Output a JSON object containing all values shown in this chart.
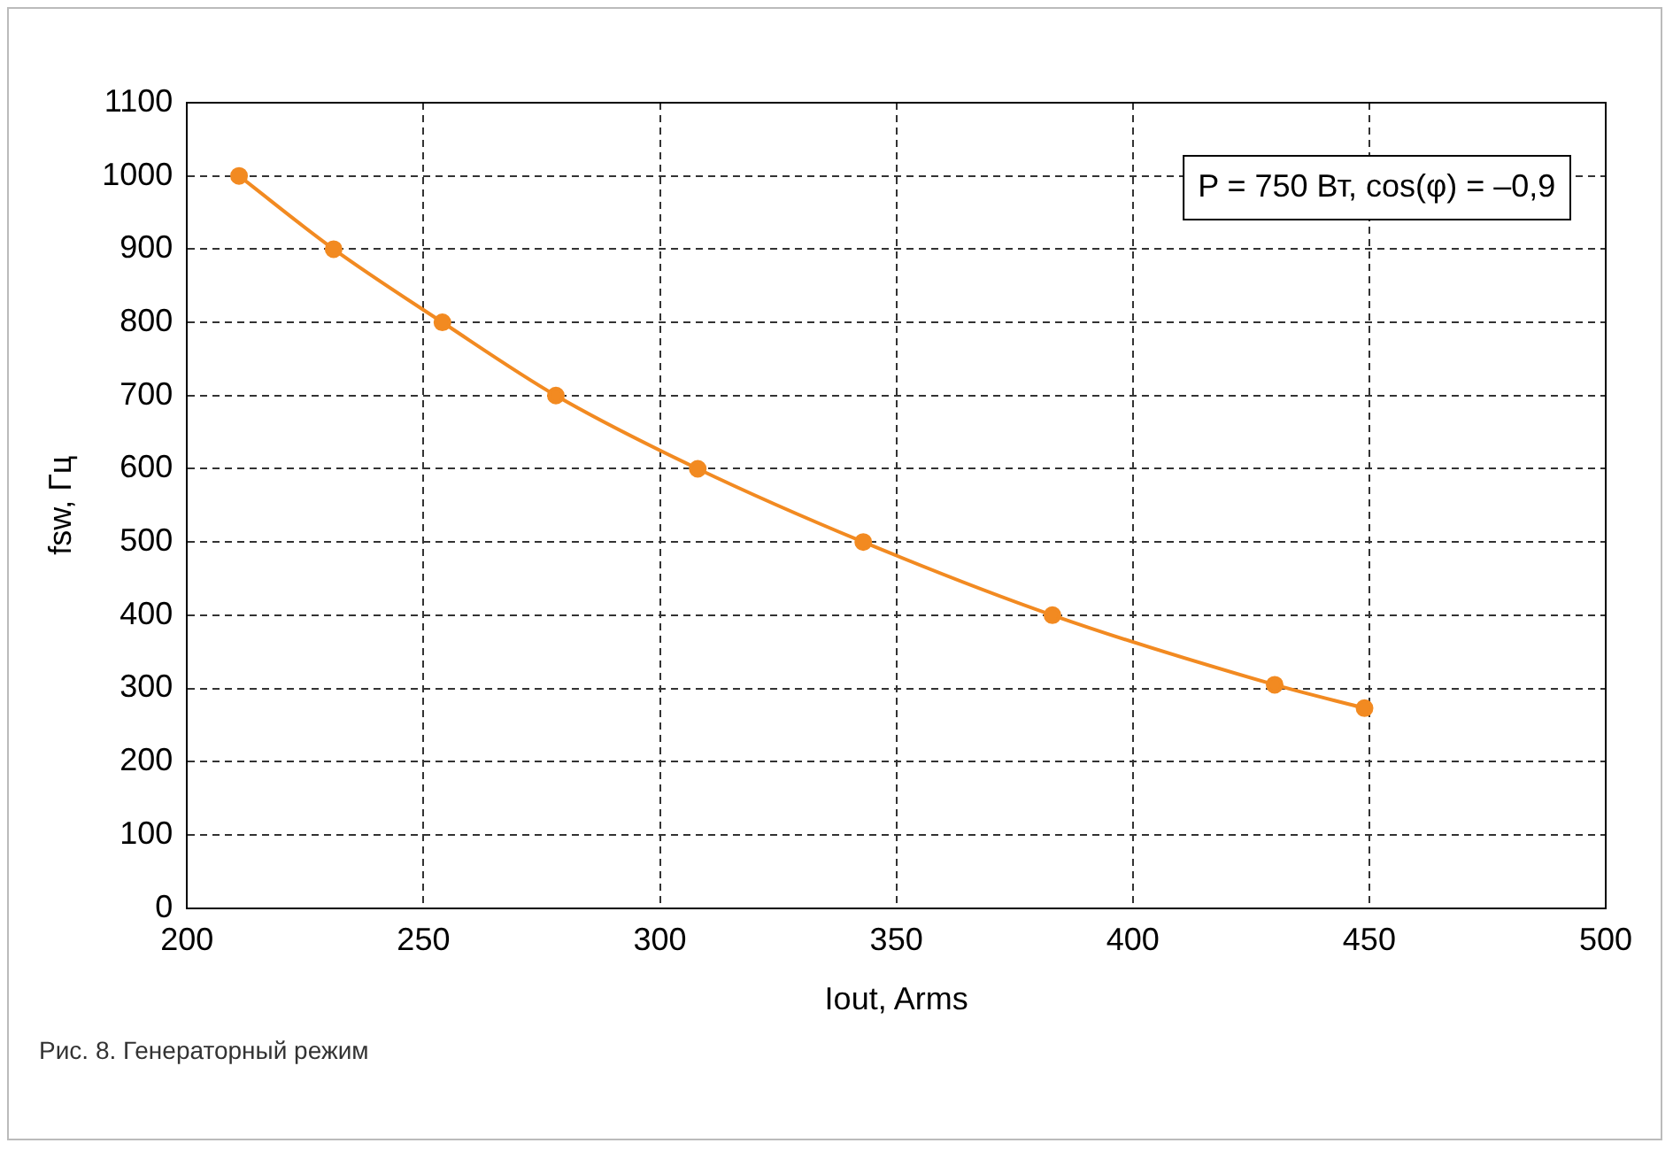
{
  "chart_data": {
    "type": "line",
    "xlabel": "Iout, Arms",
    "ylabel": "fsw, Гц",
    "x": [
      211,
      231,
      254,
      278,
      308,
      343,
      383,
      430,
      449
    ],
    "series": [
      {
        "color": "#f28a21",
        "values": [
          1000,
          900,
          800,
          700,
          600,
          500,
          400,
          305,
          273
        ]
      }
    ],
    "xlim": [
      200,
      500
    ],
    "xticks": [
      200,
      250,
      300,
      350,
      400,
      450,
      500
    ],
    "ylim": [
      0,
      1100
    ],
    "yticks": [
      0,
      100,
      200,
      300,
      400,
      500,
      600,
      700,
      800,
      900,
      1000,
      1100
    ],
    "grid": true,
    "legend": false,
    "marker": "circle",
    "line_style": "solid",
    "annotations": [
      "P = 750 Вт, cos(φ) = –0,9",
      "Рис. 8. Генераторный режим"
    ]
  }
}
